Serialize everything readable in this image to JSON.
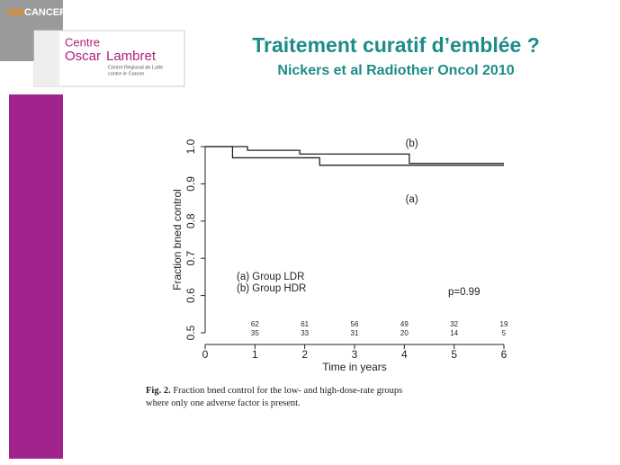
{
  "logo": {
    "brand_a": "UNI",
    "brand_b": "CANCER",
    "line1": "Centre",
    "line2": "Oscar",
    "line3": "Lambret",
    "sub1": "Centre Régional de Lutte",
    "sub2": "contre le Cancer"
  },
  "title": "Traitement curatif d’emblée ?",
  "subtitle": "Nickers et al Radiother Oncol 2010",
  "chart_data": {
    "type": "line",
    "step": true,
    "x_label": "Time in years",
    "y_label": "Fraction bned control",
    "series": [
      {
        "name": "(a) Group LDR",
        "color": "#222222",
        "x": [
          0,
          0.55,
          2.3,
          6
        ],
        "values": [
          1.0,
          0.97,
          0.95,
          0.95
        ]
      },
      {
        "name": "(b) Group HDR",
        "color": "#222222",
        "x": [
          0,
          0.85,
          1.9,
          4.1,
          6
        ],
        "values": [
          1.0,
          0.99,
          0.98,
          0.955,
          0.955
        ]
      }
    ],
    "xlim": [
      0,
      6
    ],
    "xticks": [
      0,
      1,
      2,
      3,
      4,
      5,
      6
    ],
    "ylim": [
      0.5,
      1.0
    ],
    "yticks": [
      0.5,
      0.6,
      0.7,
      0.8,
      0.9,
      {
        "value": 1.0,
        "label": "1.0"
      }
    ],
    "legend": "lower left",
    "annotations": [
      {
        "text": "(b)",
        "x": 4.15,
        "y": 1.007
      },
      {
        "text": "(a)",
        "x": 4.15,
        "y": 0.857
      },
      {
        "text": "p=0.99",
        "x": 5.2,
        "y": 0.609
      }
    ],
    "at_risk": {
      "x": [
        1,
        2,
        3,
        4,
        5,
        6
      ],
      "rows": [
        [
          62,
          61,
          56,
          49,
          32,
          19
        ],
        [
          35,
          33,
          31,
          20,
          14,
          5
        ]
      ]
    }
  },
  "caption": {
    "label": "Fig. 2.",
    "text": "Fraction bned control for the low- and high-dose-rate groups where only one adverse factor is present."
  }
}
